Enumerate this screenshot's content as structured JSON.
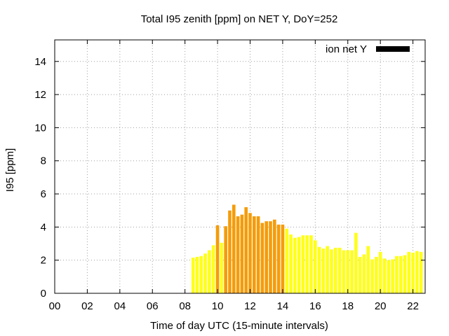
{
  "chart_data": {
    "type": "bar",
    "title": "Total I95 zenith [ppm] on NET Y, DoY=252",
    "xlabel": "Time of day UTC (15-minute intervals)",
    "ylabel": "I95 [ppm]",
    "xlim": [
      0,
      22.75
    ],
    "ylim": [
      0,
      15.3
    ],
    "x_ticks": [
      0,
      2,
      4,
      6,
      8,
      10,
      12,
      14,
      16,
      18,
      20,
      22
    ],
    "x_tick_labels": [
      "00",
      "02",
      "04",
      "06",
      "08",
      "10",
      "12",
      "14",
      "16",
      "18",
      "20",
      "22"
    ],
    "y_ticks": [
      0,
      2,
      4,
      6,
      8,
      10,
      12,
      14
    ],
    "y_tick_labels": [
      "0",
      "2",
      "4",
      "6",
      "8",
      "10",
      "12",
      "14"
    ],
    "grid": true,
    "legend": {
      "position": "top-right",
      "entries": [
        {
          "label": "ion net Y",
          "color": "#000000"
        }
      ]
    },
    "colors": {
      "low": "#ffff1a",
      "high": "#f59c0a"
    },
    "threshold": 4,
    "bar_width_hours": 0.2,
    "series": [
      {
        "x": [
          8.5,
          8.75,
          9.0,
          9.25,
          9.5,
          9.75,
          10.0,
          10.25,
          10.5,
          10.75,
          11.0,
          11.25,
          11.5,
          11.75,
          12.0,
          12.25,
          12.5,
          12.75,
          13.0,
          13.25,
          13.5,
          13.75,
          14.0,
          14.25,
          14.5,
          14.75,
          15.0,
          15.25,
          15.5,
          15.75,
          16.0,
          16.25,
          16.5,
          16.75,
          17.0,
          17.25,
          17.5,
          17.75,
          18.0,
          18.25,
          18.5,
          18.75,
          19.0,
          19.25,
          19.5,
          19.75,
          20.0,
          20.25,
          20.5,
          20.75,
          21.0,
          21.25,
          21.5,
          21.75,
          22.0,
          22.25,
          22.5
        ],
        "values": [
          2.15,
          2.2,
          2.25,
          2.4,
          2.6,
          2.9,
          4.1,
          3.05,
          4.05,
          5.0,
          5.35,
          4.65,
          4.75,
          5.2,
          4.85,
          4.65,
          4.65,
          4.25,
          4.35,
          4.35,
          4.45,
          4.15,
          4.15,
          3.9,
          3.55,
          3.35,
          3.4,
          3.5,
          3.5,
          3.5,
          3.2,
          2.8,
          2.7,
          2.85,
          2.65,
          2.75,
          2.75,
          2.6,
          2.6,
          2.6,
          3.65,
          2.2,
          2.35,
          2.85,
          2.05,
          2.2,
          2.5,
          2.1,
          2.0,
          2.05,
          2.25,
          2.25,
          2.3,
          2.5,
          2.45,
          2.55,
          2.5
        ]
      }
    ]
  }
}
